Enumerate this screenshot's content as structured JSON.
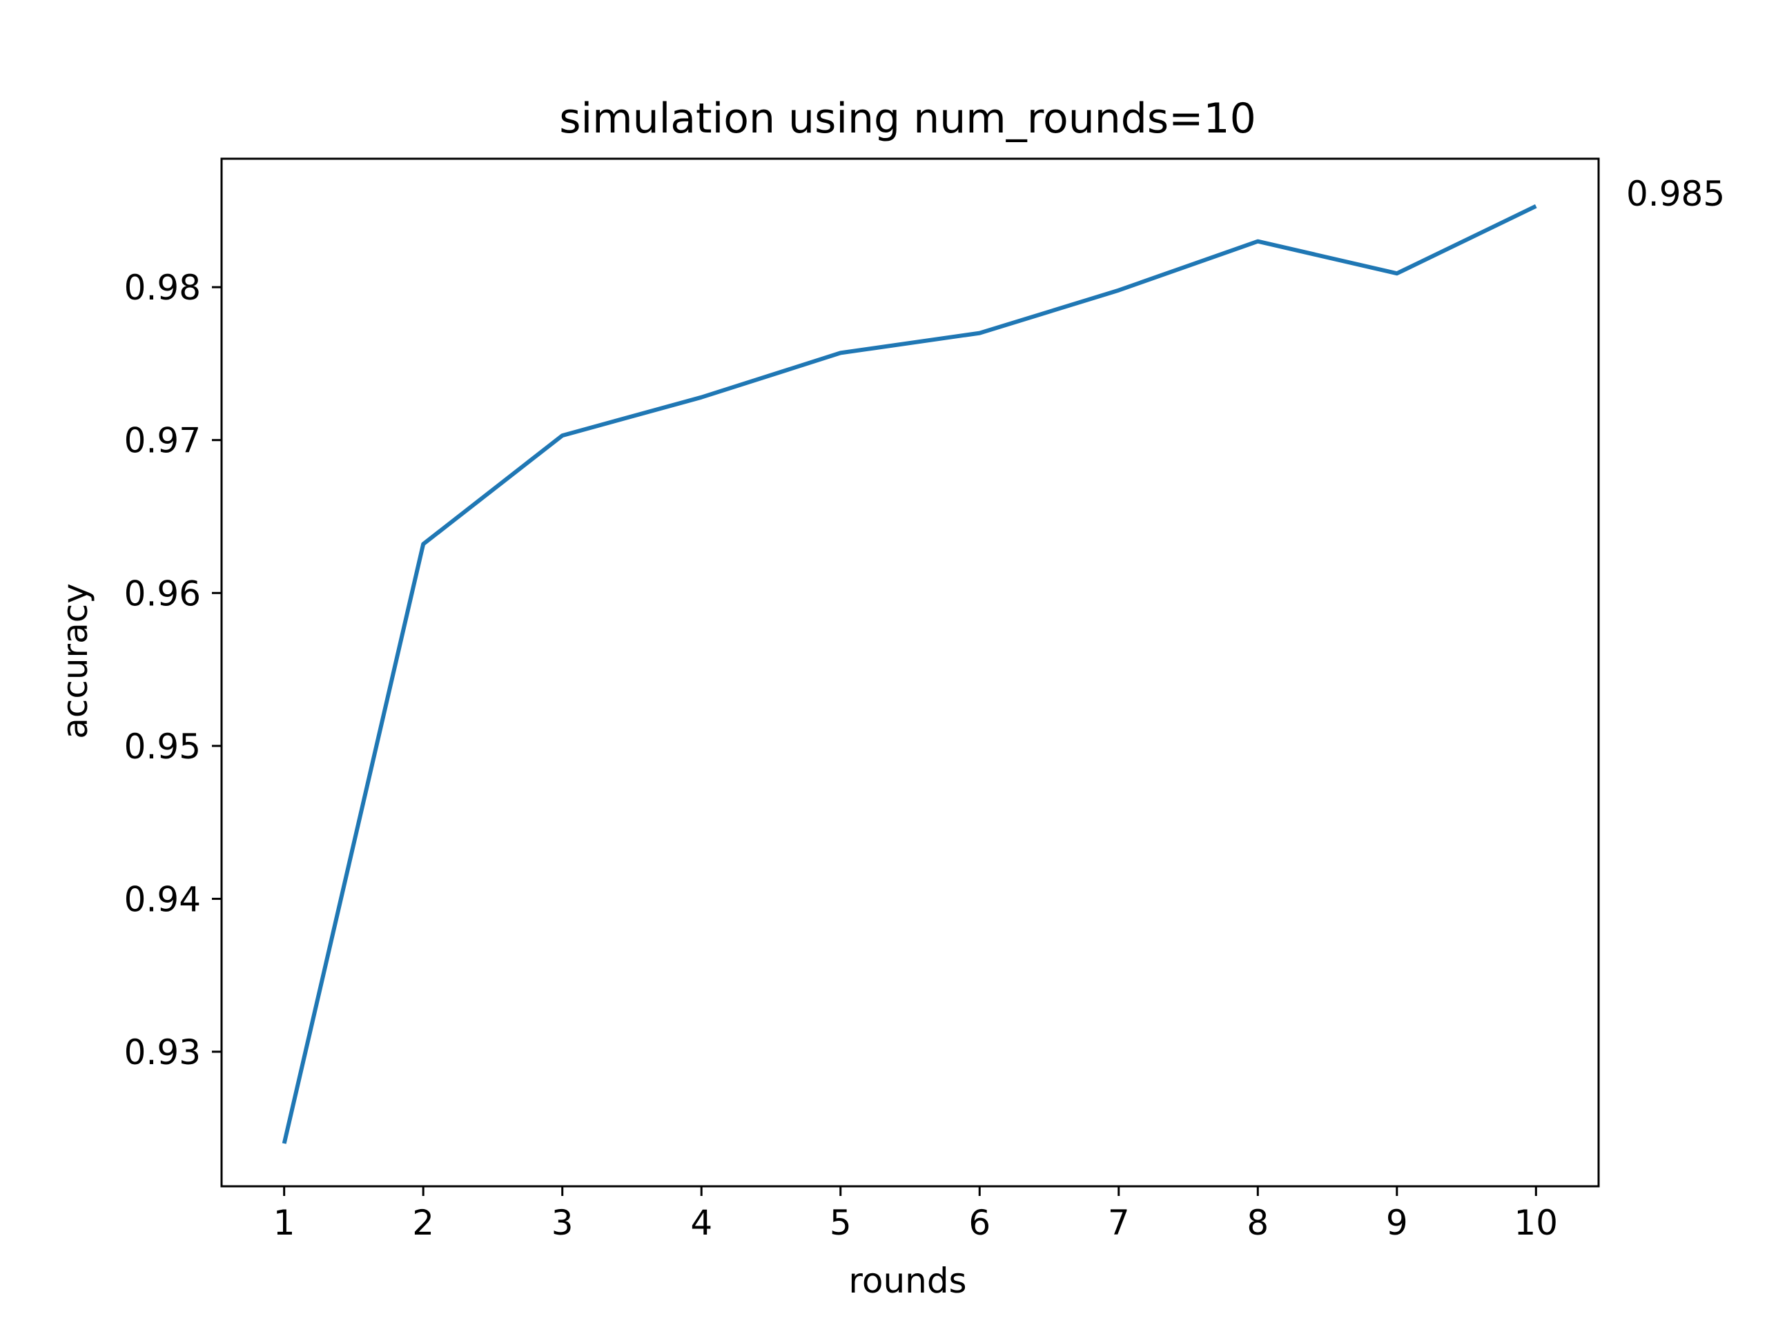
{
  "chart_data": {
    "type": "line",
    "title": "simulation using num_rounds=10",
    "xlabel": "rounds",
    "ylabel": "accuracy",
    "x": [
      1,
      2,
      3,
      4,
      5,
      6,
      7,
      8,
      9,
      10
    ],
    "xticks": [
      "1",
      "2",
      "3",
      "4",
      "5",
      "6",
      "7",
      "8",
      "9",
      "10"
    ],
    "yticks": [
      "0.93",
      "0.94",
      "0.95",
      "0.96",
      "0.97",
      "0.98"
    ],
    "ytick_values": [
      0.93,
      0.94,
      0.95,
      0.96,
      0.97,
      0.98
    ],
    "xlim": [
      0.55,
      10.45
    ],
    "ylim": [
      0.9212,
      0.9884
    ],
    "grid": false,
    "series": [
      {
        "color": "#1f77b4",
        "values": [
          0.924,
          0.9632,
          0.9703,
          0.9728,
          0.9757,
          0.977,
          0.9798,
          0.983,
          0.9809,
          0.9853
        ]
      }
    ],
    "annotation": {
      "text": "0.985"
    }
  }
}
